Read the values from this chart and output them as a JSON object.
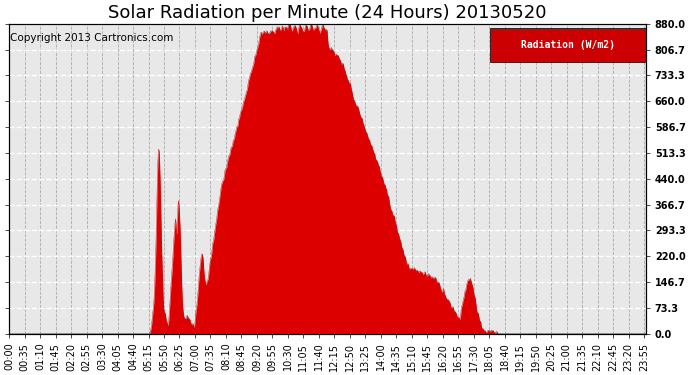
{
  "title": "Solar Radiation per Minute (24 Hours) 20130520",
  "copyright_text": "Copyright 2013 Cartronics.com",
  "legend_label": "Radiation (W/m2)",
  "background_color": "#ffffff",
  "plot_bg_color": "#e8e8e8",
  "fill_color": "#dd0000",
  "line_color": "#dd0000",
  "hline_color": "#dd0000",
  "grid_h_color": "#ffffff",
  "grid_v_color": "#aaaaaa",
  "legend_bg": "#cc0000",
  "legend_fg": "#ffffff",
  "ylim": [
    0.0,
    880.0
  ],
  "ytick_values": [
    0.0,
    73.3,
    146.7,
    220.0,
    293.3,
    366.7,
    440.0,
    513.3,
    586.7,
    660.0,
    733.3,
    806.7,
    880.0
  ],
  "title_fontsize": 13,
  "copyright_fontsize": 7.5,
  "tick_fontsize": 7,
  "figsize": [
    6.9,
    3.75
  ],
  "dpi": 100
}
